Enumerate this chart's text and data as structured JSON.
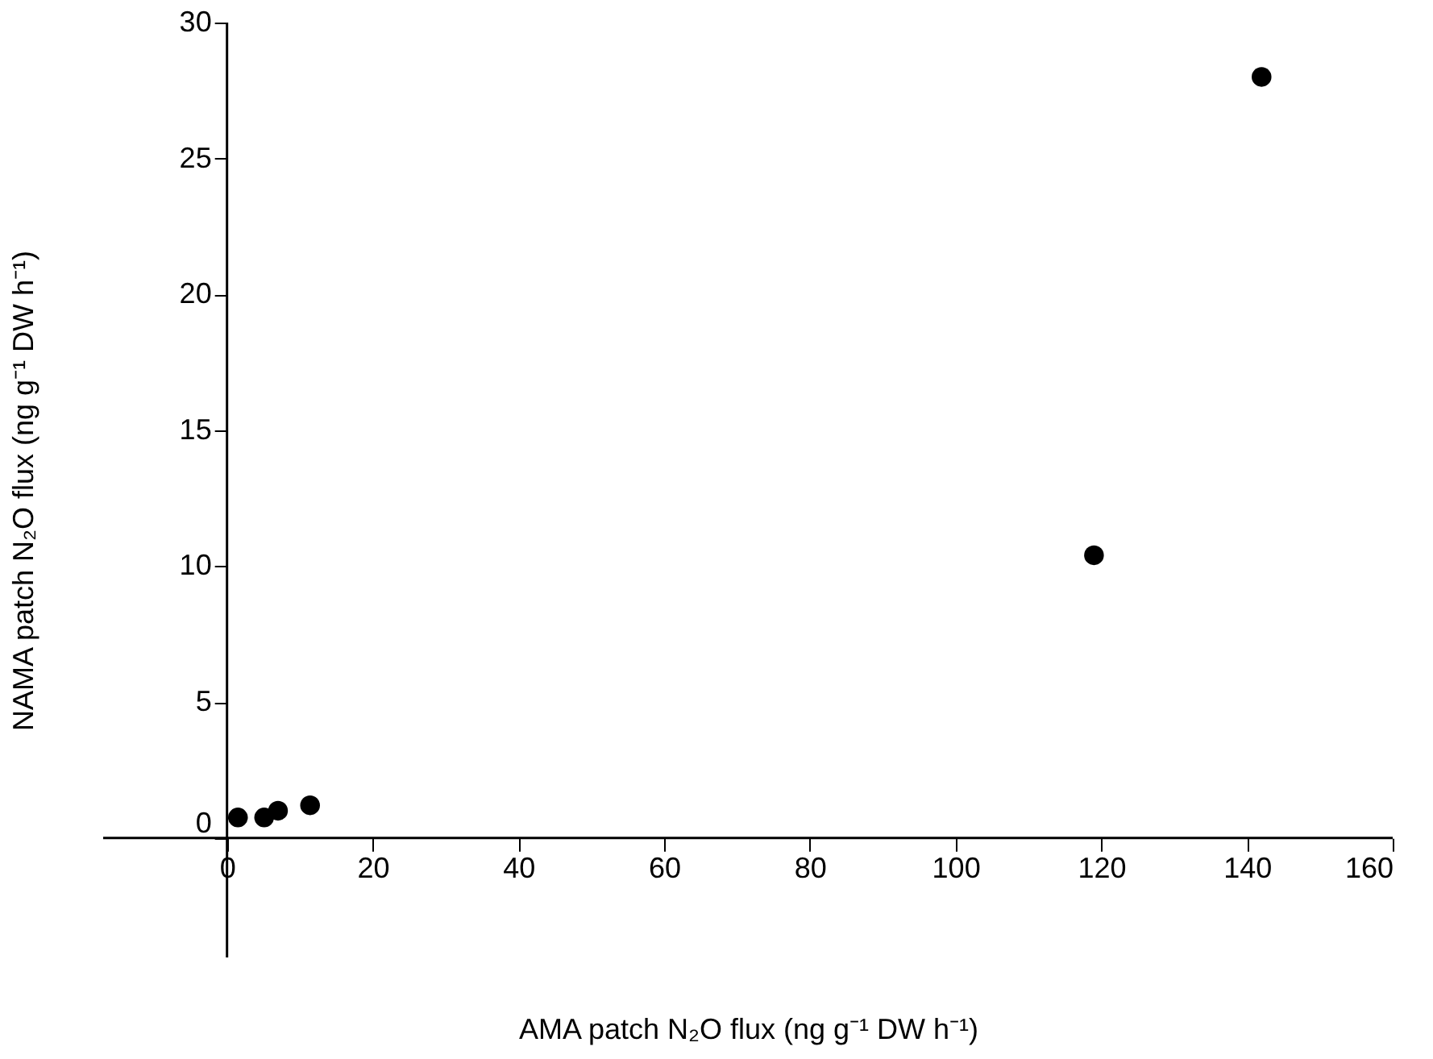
{
  "chart_data": {
    "type": "scatter",
    "xlabel": "AMA patch N₂O flux (ng g⁻¹ DW h⁻¹)",
    "ylabel": "NAMA patch N₂O flux (ng g⁻¹ DW h⁻¹)",
    "x": [
      1.5,
      5.1,
      7.0,
      11.4,
      119,
      142
    ],
    "series": [
      {
        "color": "#000000",
        "values": [
          0.75,
          0.75,
          1.0,
          1.2,
          10.4,
          28
        ]
      }
    ],
    "marker": "circle",
    "grid": false,
    "xlim": [
      -17,
      160
    ],
    "ylim": [
      -4.4,
      30
    ],
    "xticks": [
      0,
      20,
      40,
      60,
      80,
      100,
      120,
      140,
      160
    ],
    "yticks": [
      0,
      5,
      10,
      15,
      20,
      25,
      30
    ]
  }
}
